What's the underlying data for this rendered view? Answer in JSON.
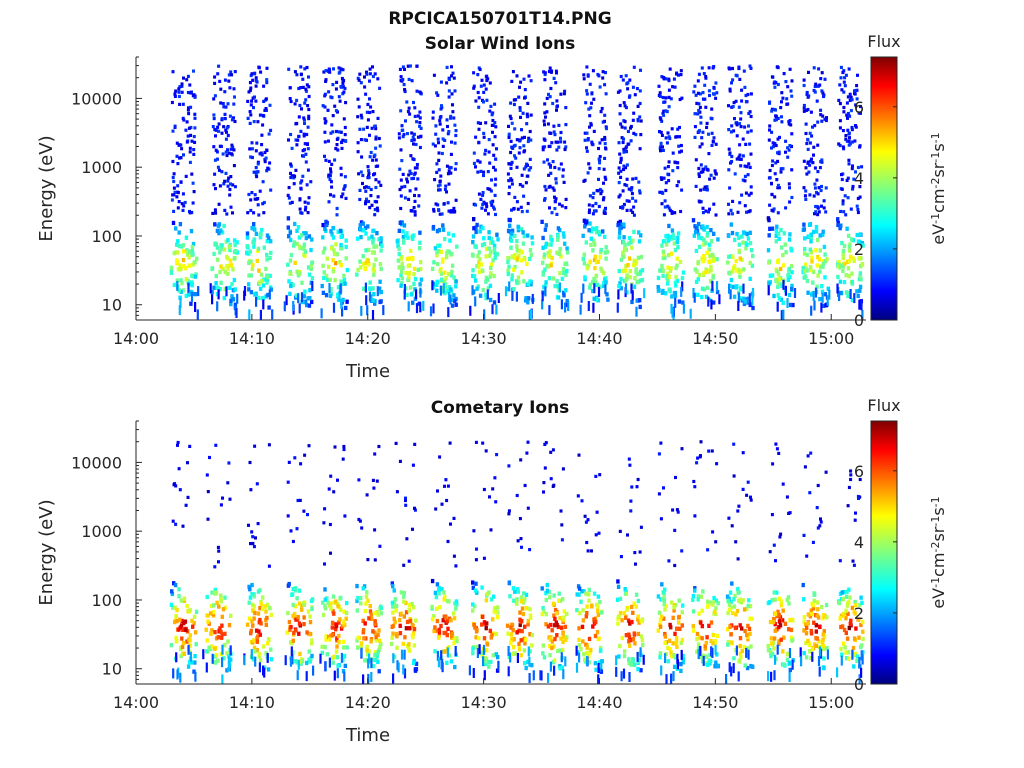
{
  "figure_title": "RPCICA150701T14.PNG",
  "colorbar": {
    "title": "Flux",
    "label_parts": [
      "eV",
      "-1",
      "cm",
      "-2",
      "sr",
      "-1",
      "s",
      "-1"
    ],
    "ticks": [
      "0",
      "2",
      "4",
      "6"
    ],
    "range": [
      0,
      7.4
    ],
    "colormap": "jet"
  },
  "chart_data": [
    {
      "type": "heatmap",
      "title": "Solar Wind Ions",
      "xlabel": "Time",
      "ylabel": "Energy (eV)",
      "x_ticks": [
        "14:00",
        "14:10",
        "14:20",
        "14:30",
        "14:40",
        "14:50",
        "15:00"
      ],
      "y_ticks": [
        "10",
        "100",
        "1000",
        "10000"
      ],
      "y_scale": "log",
      "xlim": [
        "14:00",
        "15:03"
      ],
      "ylim": [
        6,
        40000
      ],
      "burst_times": [
        "14:04",
        "14:07.5",
        "14:10.5",
        "14:14",
        "14:17",
        "14:20",
        "14:23.5",
        "14:26.5",
        "14:30",
        "14:33",
        "14:36",
        "14:39.5",
        "14:42.5",
        "14:46",
        "14:49",
        "14:52",
        "14:55.5",
        "14:58.5",
        "15:01.5"
      ],
      "core_energy_eV": 40,
      "core_flux_peak": 5,
      "sparse_energy_range_eV": [
        200,
        30000
      ],
      "sparse_flux_level": 1
    },
    {
      "type": "heatmap",
      "title": "Cometary Ions",
      "xlabel": "Time",
      "ylabel": "Energy (eV)",
      "x_ticks": [
        "14:00",
        "14:10",
        "14:20",
        "14:30",
        "14:40",
        "14:50",
        "15:00"
      ],
      "y_ticks": [
        "10",
        "100",
        "1000",
        "10000"
      ],
      "y_scale": "log",
      "xlim": [
        "14:00",
        "15:03"
      ],
      "ylim": [
        6,
        40000
      ],
      "burst_times": [
        "14:04",
        "14:07",
        "14:10.5",
        "14:14",
        "14:17",
        "14:20",
        "14:23",
        "14:26.5",
        "14:30",
        "14:33",
        "14:36",
        "14:39",
        "14:42.5",
        "14:46",
        "14:49",
        "14:52",
        "14:55.5",
        "14:58.5",
        "15:01.5"
      ],
      "core_energy_eV": 40,
      "core_flux_peak": 7,
      "sparse_energy_range_eV": [
        300,
        20000
      ],
      "sparse_flux_level": 0.8
    }
  ]
}
